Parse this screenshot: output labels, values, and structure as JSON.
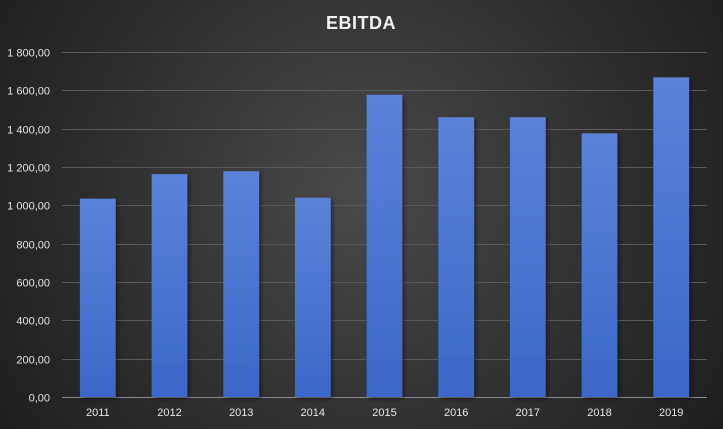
{
  "chart_data": {
    "type": "bar",
    "title": "EBITDA",
    "xlabel": "",
    "ylabel": "",
    "categories": [
      "2011",
      "2012",
      "2013",
      "2014",
      "2015",
      "2016",
      "2017",
      "2018",
      "2019"
    ],
    "values": [
      1035,
      1163,
      1178,
      1040,
      1577,
      1460,
      1460,
      1376,
      1668
    ],
    "ylim": [
      0,
      1800
    ],
    "yticks": [
      0,
      200,
      400,
      600,
      800,
      1000,
      1200,
      1400,
      1600,
      1800
    ],
    "ytick_labels": [
      "0,00",
      "200,00",
      "400,00",
      "600,00",
      "800,00",
      "1 000,00",
      "1 200,00",
      "1 400,00",
      "1 600,00",
      "1 800,00"
    ],
    "grid": true,
    "legend": "none",
    "colors": {
      "bar_top": "#5b82d8",
      "bar_bottom": "#3a68c8",
      "text": "#e6e6e6",
      "grid": "#5a5a5a"
    }
  }
}
